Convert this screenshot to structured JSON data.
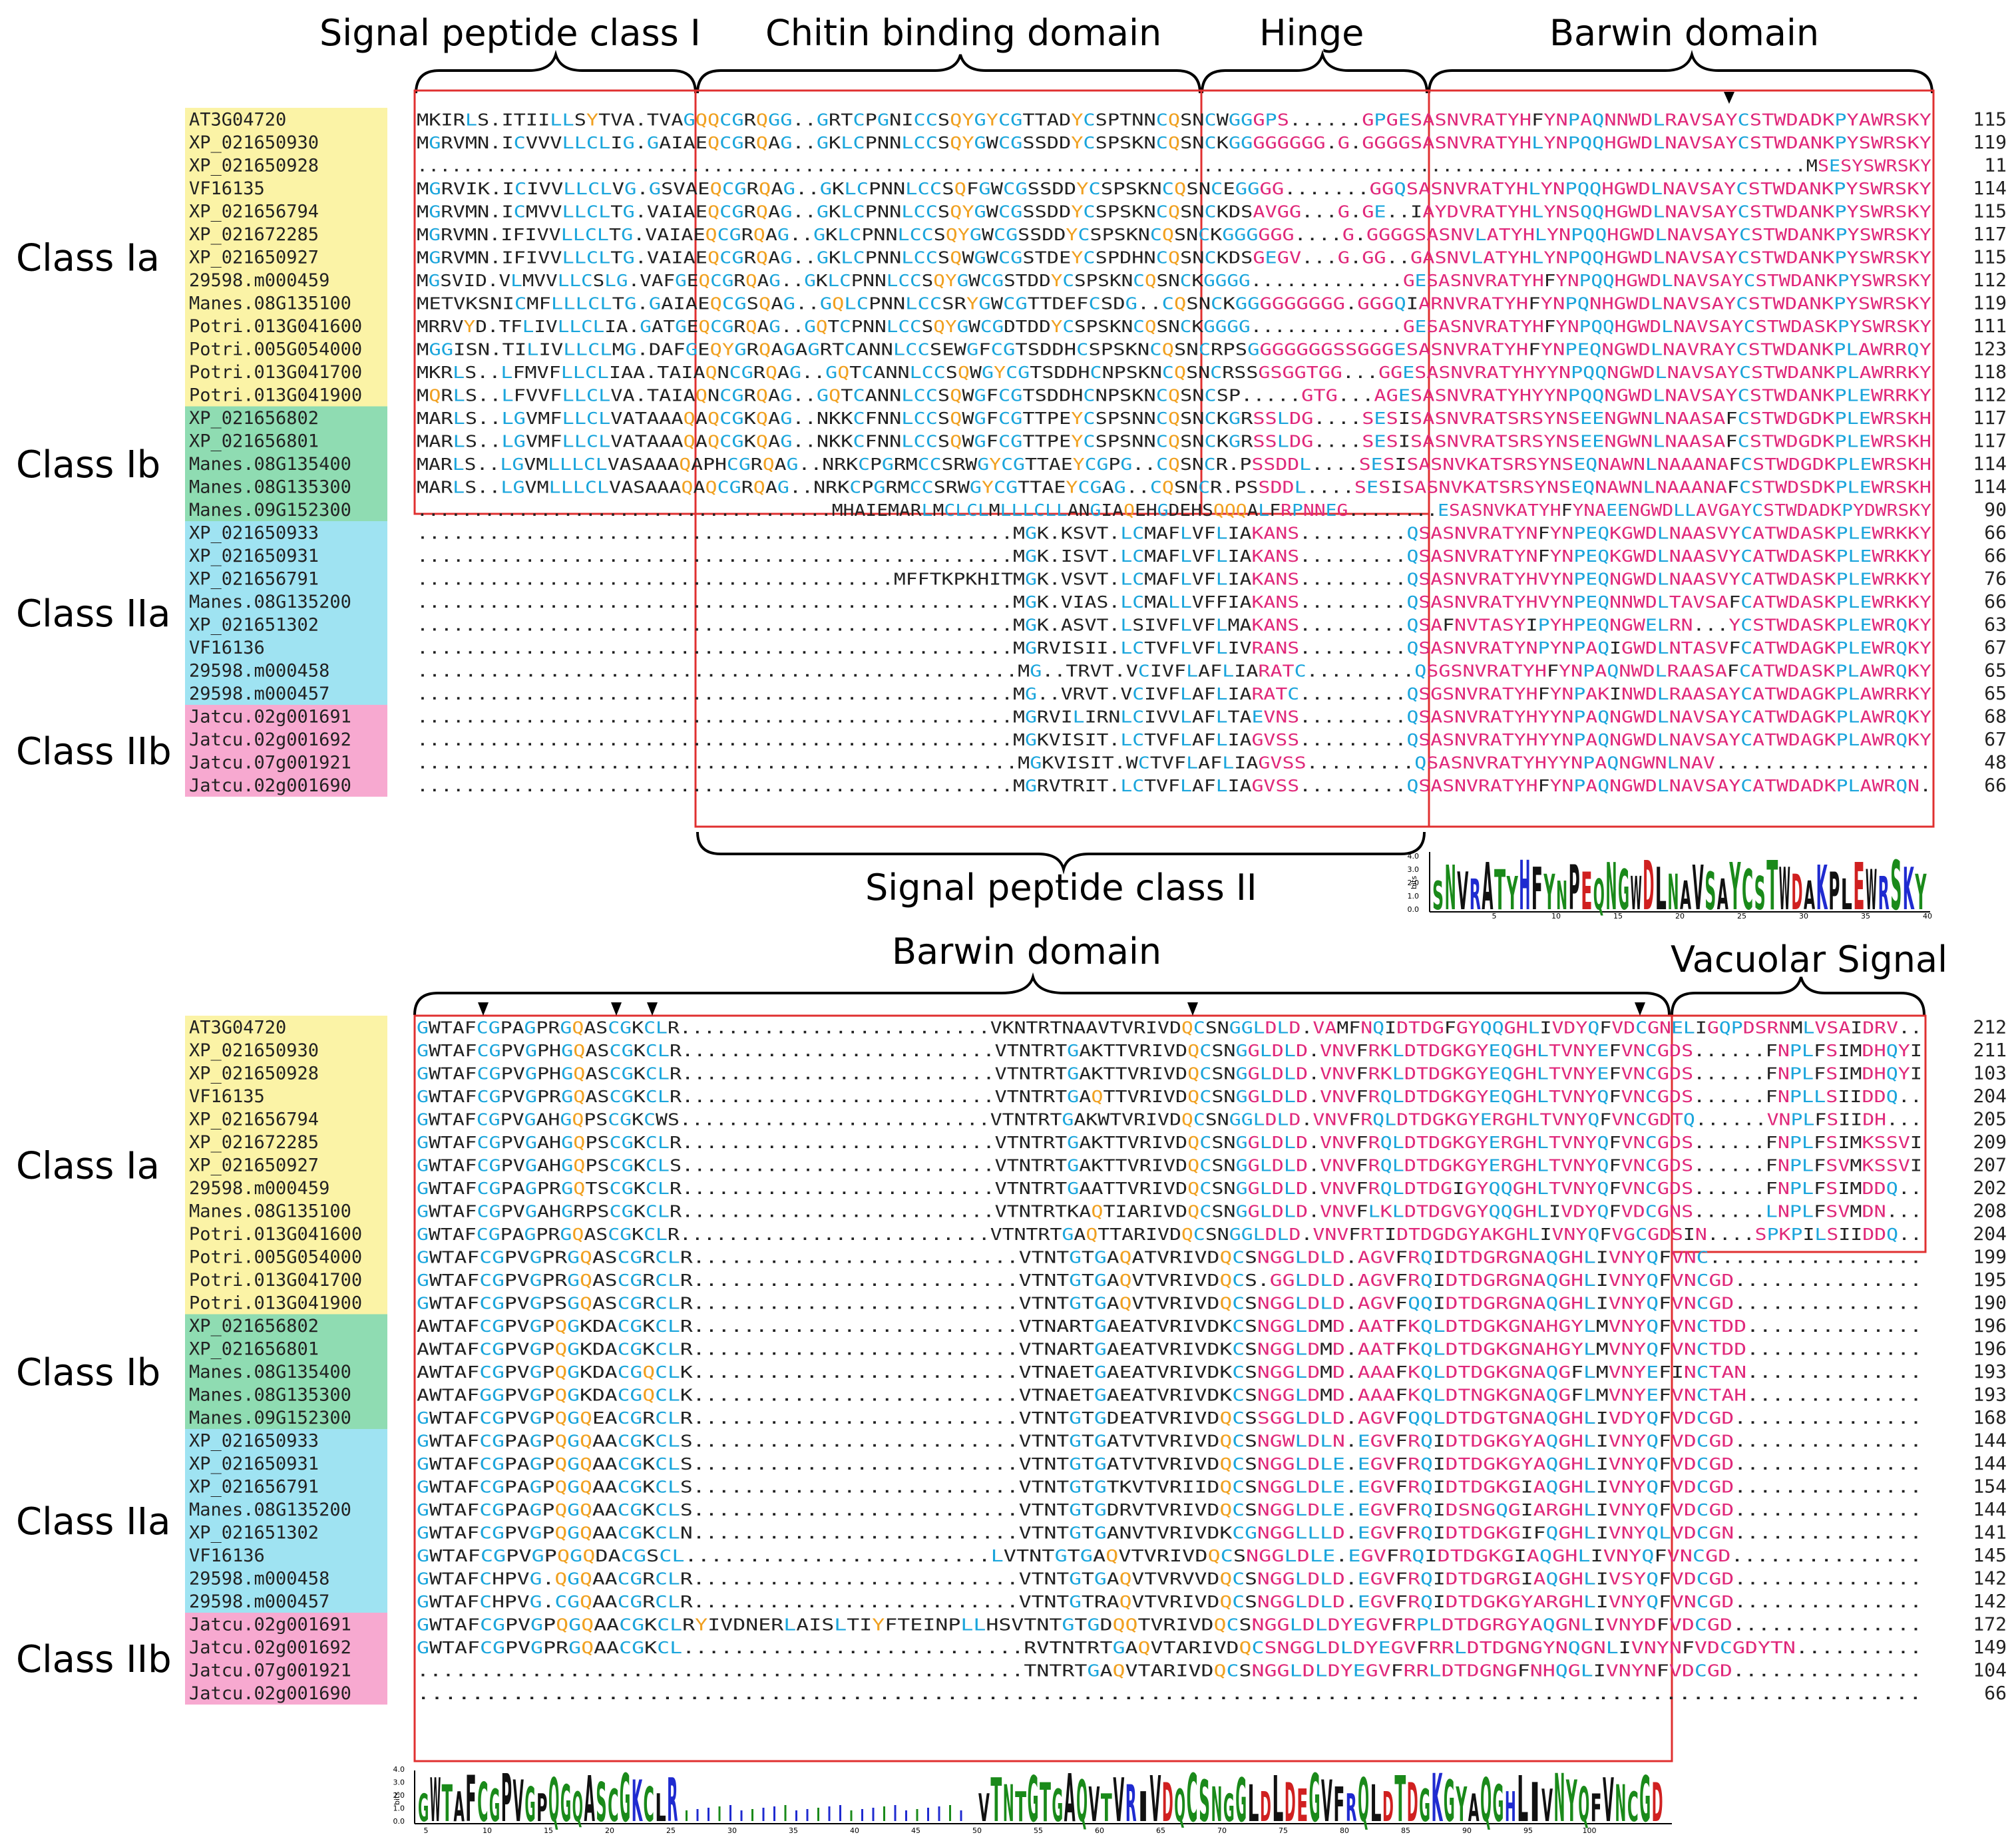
{
  "colors": {
    "class_ia": "#fbf3a6",
    "class_ib": "#8fdcb2",
    "class_iia": "#9fe3f2",
    "class_iib": "#f7a9d0",
    "box_red": "#e03030",
    "seq_magenta": "#e0287a",
    "seq_cyan": "#1aa5dc",
    "seq_orange": "#f0a020",
    "logo_green": "#1a8a1a",
    "logo_blue": "#1f2bd0",
    "logo_red": "#d02020",
    "logo_black": "#111111"
  },
  "panel1": {
    "headers": {
      "signal1": "Signal peptide class I",
      "chitin": "Chitin binding  domain",
      "hinge": "Hinge",
      "barwin": "Barwin domain",
      "signal2": "Signal peptide class II"
    },
    "classes": [
      "Class Ia",
      "Class Ib",
      "Class IIa",
      "Class IIb"
    ],
    "rows": [
      {
        "id": "AT3G04720",
        "grp": "Ia",
        "seq": "MKIRLS.ITIILLSYTVA.TVAGQQCGRQGG..GRTCPGNICCSQYGYCGTTADYCSPTNNCQSNCWGGGPS......GPGESASNVRATYHFYNPAQNNWDLRAVSAYCSTWDADKPYAWRSKY",
        "num": "115"
      },
      {
        "id": "XP_021650930",
        "grp": "Ia",
        "seq": "MGRVMN.ICVVVLLCLIG.GAIAEQCGRQAG..GKLCPNNLCCSQYGWCGSSDDYCSPSKNCQSNCKGGGGGGGG.G.GGGGSASNVRATYHLYNPQQHGWDLNAVSAYCSTWDANKPYSWRSKY",
        "num": "119"
      },
      {
        "id": "XP_021650928",
        "grp": "Ia",
        "seq": "..........................................................................................................................MSESYSWRSKY",
        "num": "11"
      },
      {
        "id": "VF16135",
        "grp": "Ia",
        "seq": "MGRVIK.ICIVVLLCLVG.GSVAEQCGRQAG..GKLCPNNLCCSQFGWCGSSDDYCSPSKNCQSNCEGGGG.......GGQSASNVRATYHLYNPQQHGWDLNAVSAYCSTWDANKPYSWRSKY",
        "num": "114"
      },
      {
        "id": "XP_021656794",
        "grp": "Ia",
        "seq": "MGRVMN.ICMVVLLCLTG.VAIAEQCGRQAG..GKLCPNNLCCSQYGWCGSSDDYCSPSKNCQSNCKDSAVGG...G.GE..IAYDVRATYHLYNSQQHGWDLNAVSAYCSTWDANKPYSWRSKY",
        "num": "115"
      },
      {
        "id": "XP_021672285",
        "grp": "Ia",
        "seq": "MGRVMN.IFIVVLLCLTG.VAIAEQCGRQAG..GKLCPNNLCCSQYGWCGSSDDYCSPSKNCQSNCKGGGGGG....G.GGGGSASNVLATYHLYNPQQHGWDLNAVSAYCSTWDANKPYSWRSKY",
        "num": "117"
      },
      {
        "id": "XP_021650927",
        "grp": "Ia",
        "seq": "MGRVMN.IFIVVLLCLTG.VAIAEQCGRQAG..GKLCPNNLCCSQWGWCGSTDEYCSPDHNCQSNCKDSGEGV...G.GG..GASNVLATYHLYNPQQHGWDLNAVSAYCSTWDANKPYSWRSKY",
        "num": "115"
      },
      {
        "id": "29598.m000459",
        "grp": "Ia",
        "seq": "MGSVID.VLMVVLLCSLG.VAFGEQCGRQAG..GKLCPNNLCCSQYGWCGSTDDYCSPSKNCQSNCKGGGG.............GESASNVRATYHFYNPQQHGWDLNAVSAYCSTWDANKPYSWRSKY",
        "num": "112"
      },
      {
        "id": "Manes.08G135100",
        "grp": "Ia",
        "seq": "METVKSNICMFLLLCLTG.GAIAEQCGSQAG..GQLCPNNLCCSRYGWCGTTDEFCSDG..CQSNCKGGGGGGGGG.GGGQIARNVRATYHFYNPQNHGWDLNAVSAYCSTWDANKPYSWRSKY",
        "num": "119"
      },
      {
        "id": "Potri.013G041600",
        "grp": "Ia",
        "seq": "MRRVYD.TFLIVLLCLIA.GATGEQCGRQAG..GQTCPNNLCCSQYGWCGDTDDYCSPSKNCQSNCKGGGG.............GESASNVRATYHFYNPQQHGWDLNAVSAYCSTWDASKPYSWRSKY",
        "num": "111"
      },
      {
        "id": "Potri.005G054000",
        "grp": "Ia",
        "seq": "MGGISN.TILIVLLCLMG.DAFGEQYGRQAGAGRTCANNLCCSEWGFCGTSDDHCSPSKNCQSNCRPSGGGGGGGSSGGGESASNVRATYHFYNPEQNGWDLNAVRAYCSTWDANKPLAWRRQY",
        "num": "123"
      },
      {
        "id": "Potri.013G041700",
        "grp": "Ia",
        "seq": "MKRLS..LFMVFLLCLIAA.TAIAQNCGRQAG..GQTCANNLCCSQWGYCGTSDDHCNPSKNCQSNCRSSGSGGTGG...GGESASNVRATYHYYNPQQNGWDLNAVSAYCSTWDANKPLAWRRKY",
        "num": "118"
      },
      {
        "id": "Potri.013G041900",
        "grp": "Ia",
        "seq": "MQRLS..LFVVFLLCLVA.TAIAQNCGRQAG..GQTCANNLCCSQWGFCGTSDDHCNPSKNCQSNCSP.....GTG...AGESASNVRATYHYYNPQQNGWDLNAVSAYCSTWDANKPLEWRRKY",
        "num": "112"
      },
      {
        "id": "XP_021656802",
        "grp": "Ib",
        "seq": "MARLS..LGVMFLLCLVATAAAQAQCGKQAG..NKKCFNNLCCSQWGFCGTTPEYCSPSNNCQSNCKGRSSLDG....SESISASNVRATSRSYNSEENGWNLNAASAFCSTWDGDKPLEWRSKH",
        "num": "117"
      },
      {
        "id": "XP_021656801",
        "grp": "Ib",
        "seq": "MARLS..LGVMFLLCLVATAAAQAQCGKQAG..NKKCFNNLCCSQWGFCGTTPEYCSPSNNCQSNCKGRSSLDG....SESISASNVRATSRSYNSEENGWNLNAASAFCSTWDGDKPLEWRSKH",
        "num": "117"
      },
      {
        "id": "Manes.08G135400",
        "grp": "Ib",
        "seq": "MARLS..LGVMLLLCLVASAAAQAPHCGRQAG..NRKCPGRMCCSRWGYCGTTAEYCGPG..CQSNCR.PSSDDL....SESISASNVKATSRSYNSEQNAWNLNAAANAFCSTWDGDKPLEWRSKH",
        "num": "114"
      },
      {
        "id": "Manes.08G135300",
        "grp": "Ib",
        "seq": "MARLS..LGVMLLLCLVASAAAQAQCGRQAG..NRKCPGRMCCSRWGYCGTTAEYCGAG..CQSNCR.PSSDDL....SESISASNVKATSRSYNSEQNAWNLNAAANAFCSTWDSDKPLEWRSKH",
        "num": "114"
      },
      {
        "id": "Manes.09G152300",
        "grp": "Ib",
        "seq": ".....................................MHAIEMARLMCLCLMLLLCLLANGIAQEHGDEHSQQQALFRPNNEG........ESASNVKATYHFYNAEENGWDLLAVGAYCSTWDADKPYDWRSKY",
        "num": "90"
      },
      {
        "id": "XP_021650933",
        "grp": "IIa",
        "seq": "..................................................MGK.KSVT.LCMAFLVFLIAKANS.........QSASNVRATYNFYNPEQKGWDLNAASVYCATWDASKPLEWRKKY",
        "num": "66"
      },
      {
        "id": "XP_021650931",
        "grp": "IIa",
        "seq": "..................................................MGK.ISVT.LCMAFLVFLIAKANS.........QSASNVRATYNFYNPEQKGWDLNAASVYCATWDASKPLEWRKKY",
        "num": "66"
      },
      {
        "id": "XP_021656791",
        "grp": "IIa",
        "seq": "........................................MFFTKPKHITMGK.VSVT.LCMAFLVFLIAKANS.........QSASNVRATYHVYNPEQNGWDLNAASVYCATWDASKPLEWRKKY",
        "num": "76"
      },
      {
        "id": "Manes.08G135200",
        "grp": "IIa",
        "seq": "..................................................MGK.VIAS.LCMALLVFFIAKANS.........QSASNVRATYHVYNPEQNNWDLTAVSAFCATWDASKPLEWRKKY",
        "num": "66"
      },
      {
        "id": "XP_021651302",
        "grp": "IIa",
        "seq": "..................................................MGK.ASVT.LSIVFLVFLMAKANS.........QSAFNVTASYIPYHPEQNGWELRN...YCSTWDASKPLEWRQKY",
        "num": "63"
      },
      {
        "id": "VF16136",
        "grp": "IIa",
        "seq": "..................................................MGRVISII.LCTVFLVFLIVRANS.........QSASNVRATYNPYNPAQIGWDLNTASVFCATWDAGKPLEWRQKY",
        "num": "67"
      },
      {
        "id": "29598.m000458",
        "grp": "IIa",
        "seq": "..................................................MG..TRVT.VCIVFLAFLIARATC.........QSGSNVRATYHFYNPAQNWDLRAASAFCATWDASKPLAWRQKY",
        "num": "65"
      },
      {
        "id": "29598.m000457",
        "grp": "IIa",
        "seq": "..................................................MG..VRVT.VCIVFLAFLIARATC.........QSGSNVRATYHFYNPAKINWDLRAASAYCATWDAGKPLAWRRKY",
        "num": "65"
      },
      {
        "id": "Jatcu.02g001691",
        "grp": "IIb",
        "seq": "..................................................MGRVILIRNLCIVVLAFLTAEVNS.........QSASNVRATYHYYNPAQNGWDLNAVSAYCATWDAGKPLAWRQKY",
        "num": "68"
      },
      {
        "id": "Jatcu.02g001692",
        "grp": "IIb",
        "seq": "..................................................MGKVISIT.LCTVFLAFLIAGVSS.........QSASNVRATYHYYNPAQNGWDLNAVSAYCATWDAGKPLAWRQKY",
        "num": "67"
      },
      {
        "id": "Jatcu.07g001921",
        "grp": "IIb",
        "seq": "..................................................MGKVISIT.WCTVFLAFLIAGVSS.........QSASNVRATYHYYNPAQNGWNLNAV..................",
        "num": "48"
      },
      {
        "id": "Jatcu.02g001690",
        "grp": "IIb",
        "seq": "..................................................MGRVTRIT.LCTVFLAFLIAGVSS.........QSASNVRATYHFYNPAQNGWDLNAVSAYCATWDADKPLAWRQN.",
        "num": "66"
      }
    ],
    "logo": {
      "bits_label": "bits",
      "y_ticks": [
        "4.0",
        "3.0",
        "2.0",
        "1.0",
        "0.0"
      ],
      "x_ticks": [
        "5",
        "10",
        "15",
        "20",
        "25",
        "30",
        "35",
        "40"
      ],
      "letters": "SNVRATYHFYNPEQNGWDLNAVSAYCSTWDAKPLEWRSKY"
    }
  },
  "panel2": {
    "headers": {
      "barwin": "Barwin domain",
      "vacuolar": "Vacuolar Signal"
    },
    "classes": [
      "Class Ia",
      "Class Ib",
      "Class IIa",
      "Class IIb"
    ],
    "rows": [
      {
        "id": "AT3G04720",
        "grp": "Ia",
        "seq": "GWTAFCGPAGPRGQASCGKCLR..........................VKNTRTNAAVTVRIVDQCSNGGLDLD.VAMFNQIDTDGFGYQQGHLIVDYQFVDCGNELIGQPDSRNMLVSAIDRV..",
        "num": "212"
      },
      {
        "id": "XP_021650930",
        "grp": "Ia",
        "seq": "GWTAFCGPVGPHGQASCGKCLR..........................VTNTRTGAKTTVRIVDQCSNGGLDLD.VNVFRKLDTDGKGYEQGHLTVNYEFVNCGDS......FNPLFSIMDHQYI",
        "num": "211"
      },
      {
        "id": "XP_021650928",
        "grp": "Ia",
        "seq": "GWTAFCGPVGPHGQASCGKCLR..........................VTNTRTGAKTTVRIVDQCSNGGLDLD.VNVFRKLDTDGKGYEQGHLTVNYEFVNCGDS......FNPLFSIMDHQYI",
        "num": "103"
      },
      {
        "id": "VF16135",
        "grp": "Ia",
        "seq": "GWTAFCGPVGPRGQASCGKCLR..........................VTNTRTGAQTTVRIVDQCSNGGLDLD.VNVFRQLDTDGKGYEQGHLTVNYQFVNCGDS......FNPLLSIIDDQ..",
        "num": "204"
      },
      {
        "id": "XP_021656794",
        "grp": "Ia",
        "seq": "GWTAFCGPVGAHGQPSCGKCWS..........................VTNTRTGAKWTVRIVDQCSNGGLDLD.VNVFRQLDTDGKGYERGHLTVNYQFVNCGDTQ......VNPLFSIIDH...",
        "num": "205"
      },
      {
        "id": "XP_021672285",
        "grp": "Ia",
        "seq": "GWTAFCGPVGAHGQPSCGKCLR..........................VTNTRTGAKTTVRIVDQCSNGGLDLD.VNVFRQLDTDGKGYERGHLTVNYQFVNCGDS......FNPLFSIMKSSVI",
        "num": "209"
      },
      {
        "id": "XP_021650927",
        "grp": "Ia",
        "seq": "GWTAFCGPVGAHGQPSCGKCLS..........................VTNTRTGAKTTVRIVDQCSNGGLDLD.VNVFRQLDTDGKGYERGHLTVNYQFVNCGDS......FNPLFSVMKSSVI",
        "num": "207"
      },
      {
        "id": "29598.m000459",
        "grp": "Ia",
        "seq": "GWTAFCGPAGPRGQTSCGKCLR..........................VTNTRTGAATTVRIVDQCSNGGLDLD.VNVFRQLDTDGIGYQQGHLTVNYQFVNCGDS......FNPLFSIMDDQ..",
        "num": "202"
      },
      {
        "id": "Manes.08G135100",
        "grp": "Ia",
        "seq": "GWTAFCGPVGAHGRPSCGKCLR..........................VTNTRTKAQTIARIVDQCSNGGLDLD.VNVFLKLDTDGVGYQQGHLIVDYQFVDCGNS......LNPLFSVMDN...",
        "num": "208"
      },
      {
        "id": "Potri.013G041600",
        "grp": "Ia",
        "seq": "GWTAFCGPAGPRGQASCGKCLR..........................VTNTRTGAQTTARIVDQCSNGGLDLD.VNVFRTIDTDGDGYAKGHLIVNYQFVGCGDSIN....SPKPILSIIDDQ..",
        "num": "204"
      },
      {
        "id": "Potri.005G054000",
        "grp": "Ia",
        "seq": "GWTAFCGPVGPRGQASCGRCLR..........................VTNTGTGAQATVRIVDQCSNGGLDLD.AGVFRQIDTDGRGNAQGHLIVNYQFVNC.................",
        "num": "199"
      },
      {
        "id": "Potri.013G041700",
        "grp": "Ia",
        "seq": "GWTAFCGPVGPRGQASCGRCLR..........................VTNTGTGAQVTVRIVDQCS.GGLDLD.AGVFRQIDTDGRGNAQGHLIVNYQFVNCGD...............",
        "num": "195"
      },
      {
        "id": "Potri.013G041900",
        "grp": "Ia",
        "seq": "GWTAFCGPVGPSGQASCGRCLR..........................VTNTGTGAQVTVRIVDQCSNGGLDLD.AGVFQQIDTDGRGNAQGHLIVNYQFVNCGD...............",
        "num": "190"
      },
      {
        "id": "XP_021656802",
        "grp": "Ib",
        "seq": "AWTAFCGPVGPQGKDACGKCLR..........................VTNARTGAEATVRIVDKCSNGGLDMD.AATFKQLDTDGKGNAHGYLMVNYQFVNCTDD..............",
        "num": "196"
      },
      {
        "id": "XP_021656801",
        "grp": "Ib",
        "seq": "AWTAFCGPVGPQGKDACGKCLR..........................VTNARTGAEATVRIVDKCSNGGLDMD.AATFKQLDTDGKGNAHGYLMVNYQFVNCTDD..............",
        "num": "196"
      },
      {
        "id": "Manes.08G135400",
        "grp": "Ib",
        "seq": "AWTAFCGPVGPQGKDACGQCLK..........................VTNAETGAEATVRIVDKCSNGGLDMD.AAAFKQLDTDGKGNAQGFLMVNYEFINCTAN..............",
        "num": "193"
      },
      {
        "id": "Manes.08G135300",
        "grp": "Ib",
        "seq": "AWTAFGGPVGPQGKDACGQCLK..........................VTNAETGAEATVRIVDKCSNGGLDMD.AAAFKQLDTNGKGNAQGFLMVNYEFVNCTAH..............",
        "num": "193"
      },
      {
        "id": "Manes.09G152300",
        "grp": "Ib",
        "seq": "GWTAFCGPVGPQGQEACGRCLR..........................VTNTGTGDEATVRIVDQCSSGGLDLD.AGVFQQLDTDGTGNAQGHLIVDYQFVDCGD...............",
        "num": "168"
      },
      {
        "id": "XP_021650933",
        "grp": "IIa",
        "seq": "GWTAFCGPAGPQGQAACGKCLS..........................VTNTGTGATVTVRIVDQCSNGWLDLN.EGVFRQIDTDGKGYAQGHLIVNYQFVDCGD...............",
        "num": "144"
      },
      {
        "id": "XP_021650931",
        "grp": "IIa",
        "seq": "GWTAFCGPAGPQGQAACGKCLS..........................VTNTGTGATVTVRIVDQCSNGGLDLE.EGVFRQIDTDGKGYAQGHLIVNYQFVDCGD...............",
        "num": "144"
      },
      {
        "id": "XP_021656791",
        "grp": "IIa",
        "seq": "GWTAFCGPAGPQGQAACGKCLS..........................VTNTGTGTKVTVRIIDQCSNGGLDLE.EGVFRQIDTDGKGIAQGHLIVNYQFVDCGD...............",
        "num": "154"
      },
      {
        "id": "Manes.08G135200",
        "grp": "IIa",
        "seq": "GWTAFCGPAGPQGQAACGKCLS..........................VTNTGTGDRVTVRIVDQCSNGGLDLE.EGVFRQIDSNGQGIARGHLIVNYQFVDCGD...............",
        "num": "144"
      },
      {
        "id": "XP_021651302",
        "grp": "IIa",
        "seq": "GWTAFCGPVGPQGQAACGKCLN..........................VTNTGTGANVTVRIVDKCGNGGLLLD.EGVFRQIDTDGKGIFQGHLIVNYQLVDCGN...............",
        "num": "141"
      },
      {
        "id": "VF16136",
        "grp": "IIa",
        "seq": "GWTAFCGPVGPQGQDACGSCL........................LVTNTGTGAQVTVRIVDQCSNGGLDLE.EGVFRQIDTDGKGIAQGHLIVNYQFVNCGD...............",
        "num": "145"
      },
      {
        "id": "29598.m000458",
        "grp": "IIa",
        "seq": "GWTAFCHPVG.QGQAACGRCLR..........................VTNTGTGAQVTVRVVDQCSNGGLDLD.EGVFRQIDTDGRGIAQGHLIVSYQFVDCGD...............",
        "num": "142"
      },
      {
        "id": "29598.m000457",
        "grp": "IIa",
        "seq": "GWTAFCHPVG.CGQAACGRCLR..........................VTNTGTRAQVTVRIVDQCSNGGLDLD.EGVFRQIDTDGKGYARGHLIVNYQFVNCGD...............",
        "num": "142"
      },
      {
        "id": "Jatcu.02g001691",
        "grp": "IIb",
        "seq": "GWTAFCGPVGPQGQAACGKCLRYIVDNERLAISLTIYFTEINPLLHSVTNTGTGDQQTVRIVDQCSNGGLDLDYEGVFRPLDTDGRGYAQGNLIVNYDFVDCGD...............",
        "num": "172"
      },
      {
        "id": "Jatcu.02g001692",
        "grp": "IIb",
        "seq": "GWTAFCGPVGPRGQAACGKCL...........................RVTNTRTGAQVTARIVDQCSNGGLDLDYEGVFRRLDTDGNGYNQGNLIVNYNFVDCGDYTN..........",
        "num": "149"
      },
      {
        "id": "Jatcu.07g001921",
        "grp": "IIb",
        "seq": "................................................TNTRTGAQVTARIVDQCSNGGLDLDYEGVFRRLDTDGNGFNHQGLIVNYNFVDCGD...............",
        "num": "104"
      },
      {
        "id": "Jatcu.02g001690",
        "grp": "IIb",
        "seq": "...............................................................................................................",
        "num": "66"
      }
    ],
    "logo": {
      "bits_label": "bits",
      "y_ticks": [
        "4.0",
        "3.0",
        "2.0",
        "1.0",
        "0.0"
      ],
      "x_ticks": [
        "5",
        "10",
        "15",
        "20",
        "25",
        "30",
        "35",
        "40",
        "45",
        "50",
        "55",
        "60",
        "65",
        "70",
        "75",
        "80",
        "85",
        "90",
        "95",
        "100"
      ],
      "letters_left": "GWTAFCGPVGPQGQASCGKCLR",
      "letters_right": "VTNTGTGAQVTVRIVDQCSNGGLDLDEGVFRQLDTDGKGYAQGHLIVNYQFVNCGD"
    }
  }
}
